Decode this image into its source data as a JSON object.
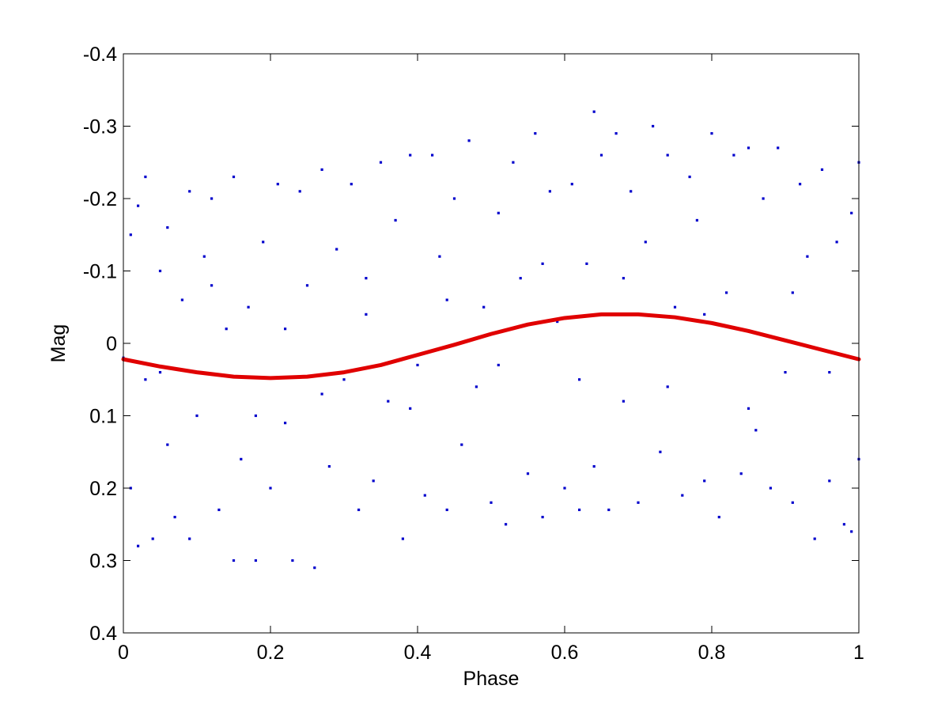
{
  "chart_data": {
    "type": "scatter",
    "title": "",
    "xlabel": "Phase",
    "ylabel": "Mag",
    "xlim": [
      0,
      1
    ],
    "ylim": [
      -0.4,
      0.4
    ],
    "y_reversed": true,
    "grid": false,
    "x_ticks": [
      0,
      0.2,
      0.4,
      0.6,
      0.8,
      1
    ],
    "x_tick_labels": [
      "0",
      "0.2",
      "0.4",
      "0.6",
      "0.8",
      "1"
    ],
    "y_ticks": [
      -0.4,
      -0.3,
      -0.2,
      -0.1,
      0,
      0.1,
      0.2,
      0.3,
      0.4
    ],
    "y_tick_labels": [
      "-0.4",
      "-0.3",
      "-0.2",
      "-0.1",
      "0",
      "0.1",
      "0.2",
      "0.3",
      "0.4"
    ],
    "series": [
      {
        "kind": "scatter",
        "color": "#0000cc",
        "points": [
          [
            0.0,
            0.02
          ],
          [
            0.01,
            -0.15
          ],
          [
            0.01,
            0.2
          ],
          [
            0.02,
            0.28
          ],
          [
            0.02,
            -0.19
          ],
          [
            0.03,
            0.05
          ],
          [
            0.03,
            -0.23
          ],
          [
            0.04,
            0.27
          ],
          [
            0.05,
            -0.1
          ],
          [
            0.06,
            -0.16
          ],
          [
            0.06,
            0.14
          ],
          [
            0.07,
            0.24
          ],
          [
            0.08,
            -0.06
          ],
          [
            0.09,
            -0.21
          ],
          [
            0.09,
            0.27
          ],
          [
            0.1,
            0.1
          ],
          [
            0.11,
            -0.12
          ],
          [
            0.12,
            -0.2
          ],
          [
            0.13,
            0.23
          ],
          [
            0.14,
            -0.02
          ],
          [
            0.15,
            0.3
          ],
          [
            0.15,
            -0.23
          ],
          [
            0.16,
            0.16
          ],
          [
            0.17,
            -0.05
          ],
          [
            0.18,
            0.3
          ],
          [
            0.19,
            -0.14
          ],
          [
            0.2,
            0.2
          ],
          [
            0.21,
            -0.22
          ],
          [
            0.22,
            0.11
          ],
          [
            0.23,
            0.3
          ],
          [
            0.24,
            -0.21
          ],
          [
            0.25,
            -0.08
          ],
          [
            0.26,
            0.31
          ],
          [
            0.27,
            -0.24
          ],
          [
            0.28,
            0.17
          ],
          [
            0.29,
            -0.13
          ],
          [
            0.3,
            0.05
          ],
          [
            0.31,
            -0.22
          ],
          [
            0.32,
            0.23
          ],
          [
            0.33,
            -0.09
          ],
          [
            0.34,
            0.19
          ],
          [
            0.35,
            -0.25
          ],
          [
            0.36,
            0.08
          ],
          [
            0.37,
            -0.17
          ],
          [
            0.38,
            0.27
          ],
          [
            0.39,
            -0.26
          ],
          [
            0.4,
            0.03
          ],
          [
            0.41,
            0.21
          ],
          [
            0.42,
            -0.26
          ],
          [
            0.43,
            -0.12
          ],
          [
            0.44,
            0.23
          ],
          [
            0.45,
            -0.2
          ],
          [
            0.46,
            0.14
          ],
          [
            0.47,
            -0.28
          ],
          [
            0.48,
            0.06
          ],
          [
            0.49,
            -0.05
          ],
          [
            0.5,
            0.22
          ],
          [
            0.51,
            -0.18
          ],
          [
            0.52,
            0.25
          ],
          [
            0.53,
            -0.25
          ],
          [
            0.54,
            -0.09
          ],
          [
            0.55,
            0.18
          ],
          [
            0.56,
            -0.29
          ],
          [
            0.57,
            0.24
          ],
          [
            0.58,
            -0.21
          ],
          [
            0.59,
            -0.03
          ],
          [
            0.6,
            0.2
          ],
          [
            0.61,
            -0.22
          ],
          [
            0.62,
            0.23
          ],
          [
            0.63,
            -0.11
          ],
          [
            0.64,
            0.17
          ],
          [
            0.64,
            -0.32
          ],
          [
            0.65,
            -0.26
          ],
          [
            0.66,
            0.23
          ],
          [
            0.67,
            -0.29
          ],
          [
            0.68,
            0.08
          ],
          [
            0.69,
            -0.21
          ],
          [
            0.7,
            0.22
          ],
          [
            0.71,
            -0.14
          ],
          [
            0.72,
            -0.3
          ],
          [
            0.73,
            0.15
          ],
          [
            0.74,
            -0.26
          ],
          [
            0.75,
            -0.05
          ],
          [
            0.76,
            0.21
          ],
          [
            0.77,
            -0.23
          ],
          [
            0.78,
            -0.17
          ],
          [
            0.79,
            0.19
          ],
          [
            0.8,
            -0.29
          ],
          [
            0.81,
            0.24
          ],
          [
            0.82,
            -0.07
          ],
          [
            0.83,
            -0.26
          ],
          [
            0.84,
            0.18
          ],
          [
            0.85,
            -0.27
          ],
          [
            0.86,
            0.12
          ],
          [
            0.87,
            -0.2
          ],
          [
            0.88,
            0.2
          ],
          [
            0.89,
            -0.27
          ],
          [
            0.9,
            0.04
          ],
          [
            0.91,
            0.22
          ],
          [
            0.92,
            -0.22
          ],
          [
            0.93,
            -0.12
          ],
          [
            0.94,
            0.27
          ],
          [
            0.95,
            -0.24
          ],
          [
            0.96,
            0.19
          ],
          [
            0.97,
            -0.14
          ],
          [
            0.98,
            0.25
          ],
          [
            0.99,
            -0.18
          ],
          [
            0.99,
            0.26
          ],
          [
            1.0,
            -0.25
          ],
          [
            1.0,
            0.16
          ],
          [
            0.05,
            0.04
          ],
          [
            0.12,
            -0.08
          ],
          [
            0.18,
            0.1
          ],
          [
            0.22,
            -0.02
          ],
          [
            0.27,
            0.07
          ],
          [
            0.33,
            -0.04
          ],
          [
            0.39,
            0.09
          ],
          [
            0.44,
            -0.06
          ],
          [
            0.51,
            0.03
          ],
          [
            0.57,
            -0.11
          ],
          [
            0.62,
            0.05
          ],
          [
            0.68,
            -0.09
          ],
          [
            0.74,
            0.06
          ],
          [
            0.79,
            -0.04
          ],
          [
            0.85,
            0.09
          ],
          [
            0.91,
            -0.07
          ],
          [
            0.96,
            0.04
          ]
        ]
      },
      {
        "kind": "line",
        "color": "#e00000",
        "x": [
          0,
          0.05,
          0.1,
          0.15,
          0.2,
          0.25,
          0.3,
          0.35,
          0.4,
          0.45,
          0.5,
          0.55,
          0.6,
          0.65,
          0.7,
          0.75,
          0.8,
          0.85,
          0.9,
          0.95,
          1
        ],
        "y": [
          0.022,
          0.032,
          0.04,
          0.046,
          0.048,
          0.046,
          0.04,
          0.03,
          0.016,
          0.002,
          -0.013,
          -0.026,
          -0.035,
          -0.04,
          -0.04,
          -0.036,
          -0.028,
          -0.017,
          -0.004,
          0.009,
          0.022
        ]
      }
    ]
  }
}
